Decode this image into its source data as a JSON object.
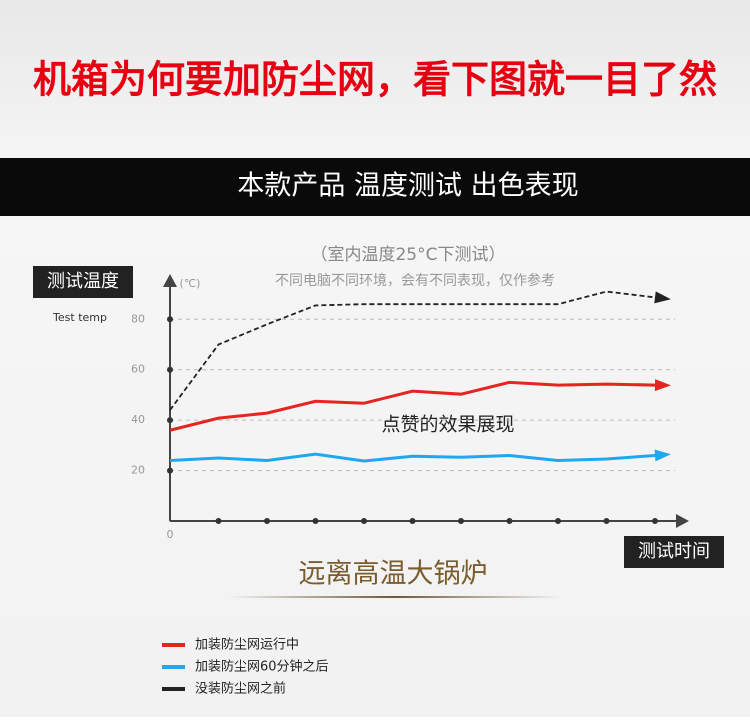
{
  "header": {
    "title": "机箱为何要加防尘网，看下图就一目了然",
    "banner": "本款产品 温度测试 出色表现"
  },
  "chart_data": {
    "type": "line",
    "subtitle": "（室内温度25°C下测试）",
    "note": "不同电脑不同环境，会有不同表现，仅作参考",
    "ylabel": "测试温度",
    "ylabel_en": "Test temp",
    "yunit": "(℃)",
    "xlabel": "测试时间",
    "annotation": "点赞的效果展现",
    "categories": [
      null,
      null,
      null,
      null,
      null,
      null,
      null,
      null,
      null,
      null,
      null
    ],
    "series": [
      {
        "name": "加装防尘网运行中",
        "color": "#e52521",
        "dash": false,
        "values": [
          36,
          40.8,
          42.8,
          47.5,
          46.7,
          51.5,
          50.3,
          55,
          53.9,
          54.3,
          53.9
        ]
      },
      {
        "name": "加装防尘网60分钟之后",
        "color": "#1ea8f0",
        "dash": false,
        "values": [
          24,
          25,
          24,
          26.5,
          23.8,
          25.7,
          25.3,
          26,
          24,
          24.6,
          26
        ]
      },
      {
        "name": "没装防尘网之前",
        "color": "#222222",
        "dash": true,
        "values": [
          44,
          70,
          78,
          85.5,
          86,
          86,
          86,
          86,
          86,
          91,
          88.7
        ]
      }
    ],
    "ylim": [
      0,
      94
    ],
    "yticks": [
      0,
      20,
      40,
      60,
      80
    ],
    "grid": true
  },
  "footer": {
    "slogan": "远离高温大锅炉"
  }
}
